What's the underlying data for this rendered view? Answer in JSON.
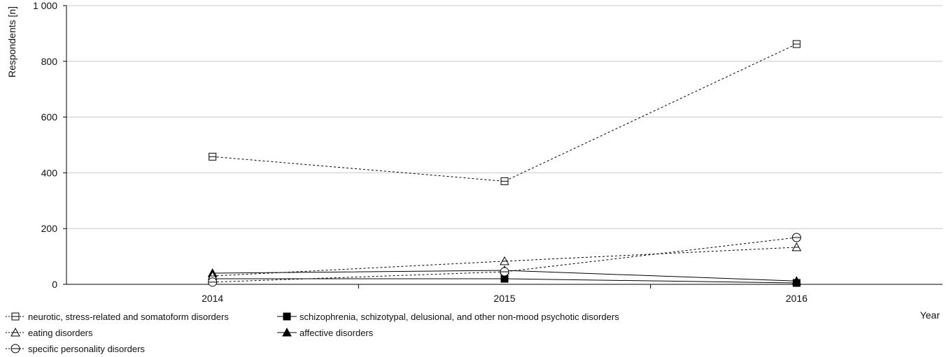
{
  "chart_data": {
    "type": "line",
    "categories": [
      "2014",
      "2015",
      "2016"
    ],
    "ylabel": "Respondents [n]",
    "xlabel": "Year",
    "ylim": [
      0,
      1000
    ],
    "yticks": [
      "0",
      "200",
      "400",
      "600",
      "800",
      "1 000"
    ],
    "grid": "horizontal",
    "legend_position": "bottom-left",
    "series": [
      {
        "name": "neurotic, stress-related and somatoform disorders",
        "values": [
          458,
          370,
          862
        ],
        "marker": "open-square",
        "line": "dotted"
      },
      {
        "name": "eating disorders",
        "values": [
          30,
          83,
          133
        ],
        "marker": "open-triangle",
        "line": "dotted"
      },
      {
        "name": "specific personality disorders",
        "values": [
          8,
          45,
          168
        ],
        "marker": "open-circle",
        "line": "dotted"
      },
      {
        "name": "schizophrenia, schizotypal, delusional, and other non-mood psychotic disorders",
        "values": [
          20,
          20,
          5
        ],
        "marker": "filled-square",
        "line": "solid"
      },
      {
        "name": "affective disorders",
        "values": [
          40,
          50,
          12
        ],
        "marker": "filled-triangle",
        "line": "solid"
      }
    ]
  }
}
